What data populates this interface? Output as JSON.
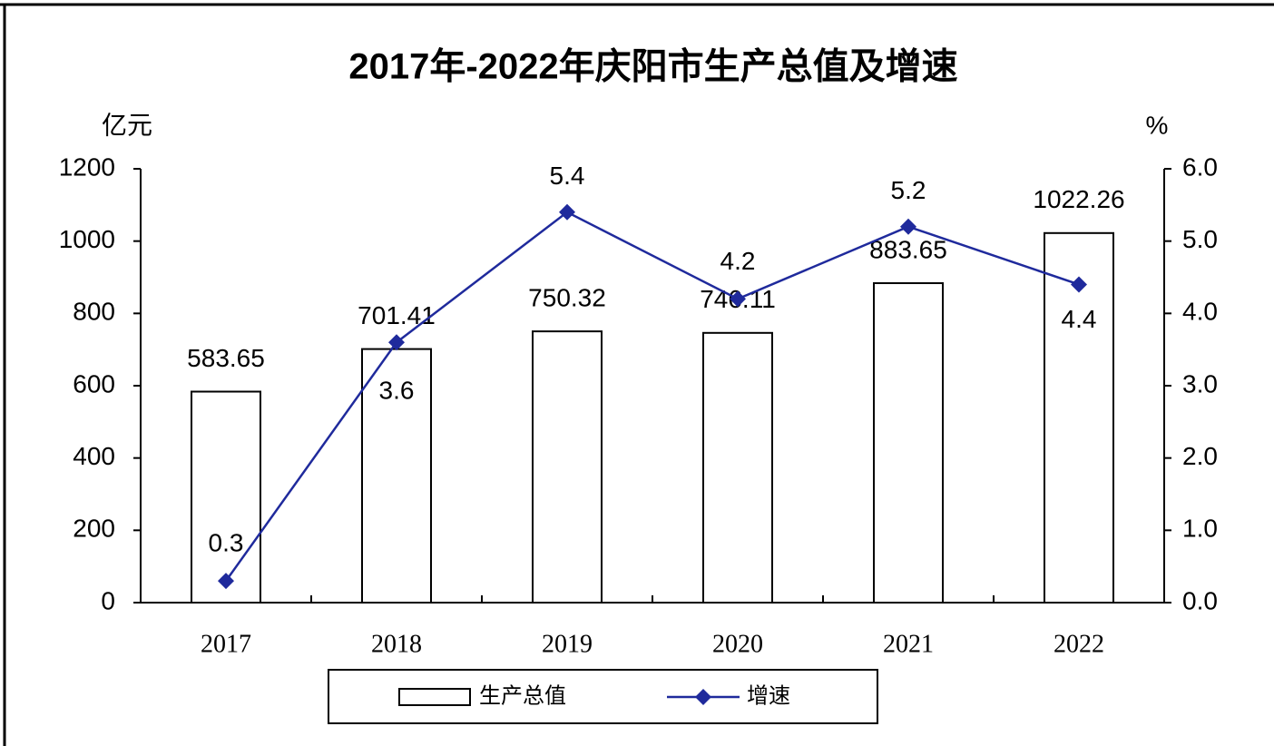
{
  "chart_data": {
    "type": "bar",
    "title": "2017年-2022年庆阳市生产总值及增速",
    "y_label": "亿元",
    "y2_label": "%",
    "categories": [
      "2017",
      "2018",
      "2019",
      "2020",
      "2021",
      "2022"
    ],
    "series": [
      {
        "name": "生产总值",
        "type": "bar",
        "color": "#ffffff",
        "values": [
          583.65,
          701.41,
          750.32,
          746.11,
          883.65,
          1022.26
        ]
      },
      {
        "name": "增速",
        "type": "line",
        "axis": "y2",
        "color": "#1f2a9c",
        "values": [
          0.3,
          3.6,
          5.4,
          4.2,
          5.2,
          4.4
        ]
      }
    ],
    "ylim": [
      0,
      1200
    ],
    "yticks": [
      0,
      200,
      400,
      600,
      800,
      1000,
      1200
    ],
    "y2lim": [
      0,
      6
    ],
    "y2ticks": [
      {
        "value": 0,
        "label": "0.0"
      },
      {
        "value": 1,
        "label": "1.0"
      },
      {
        "value": 2,
        "label": "2.0"
      },
      {
        "value": 3,
        "label": "3.0"
      },
      {
        "value": 4,
        "label": "4.0"
      },
      {
        "value": 5,
        "label": "5.0"
      },
      {
        "value": 6,
        "label": "6.0"
      }
    ],
    "legend": "bottom"
  }
}
